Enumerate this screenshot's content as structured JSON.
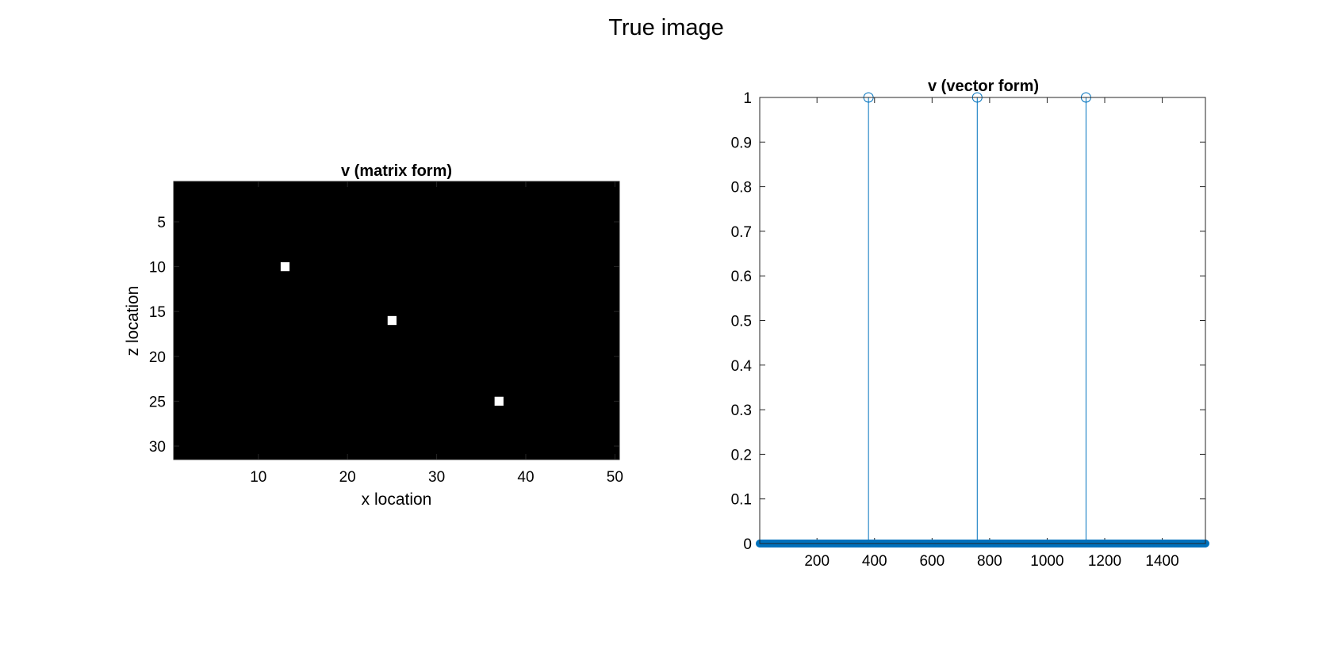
{
  "figure": {
    "suptitle": "True image"
  },
  "chart_data": [
    {
      "type": "heatmap",
      "title": "v (matrix form)",
      "xlabel": "x location",
      "ylabel": "z location",
      "xlim": [
        0.5,
        50.5
      ],
      "ylim": [
        0.5,
        31.5
      ],
      "y_reversed": true,
      "xticks": [
        10,
        20,
        30,
        40,
        50
      ],
      "yticks": [
        5,
        10,
        15,
        20,
        25,
        30
      ],
      "background_value": 0,
      "colormap": {
        "low": "#000000",
        "high": "#ffffff"
      },
      "points": [
        {
          "x": 13,
          "z": 10,
          "value": 1
        },
        {
          "x": 25,
          "z": 16,
          "value": 1
        },
        {
          "x": 37,
          "z": 25,
          "value": 1
        }
      ]
    },
    {
      "type": "stem",
      "title": "v (vector form)",
      "xlim": [
        1,
        1550
      ],
      "ylim": [
        0,
        1
      ],
      "xticks": [
        200,
        400,
        600,
        800,
        1000,
        1200,
        1400
      ],
      "yticks": [
        0,
        0.1,
        0.2,
        0.3,
        0.4,
        0.5,
        0.6,
        0.7,
        0.8,
        0.9,
        1
      ],
      "color": "#0072BD",
      "n_samples": 1550,
      "nonzero": [
        {
          "x": 379,
          "y": 1
        },
        {
          "x": 757,
          "y": 1
        },
        {
          "x": 1135,
          "y": 1
        }
      ],
      "baseline_value": 0
    }
  ]
}
